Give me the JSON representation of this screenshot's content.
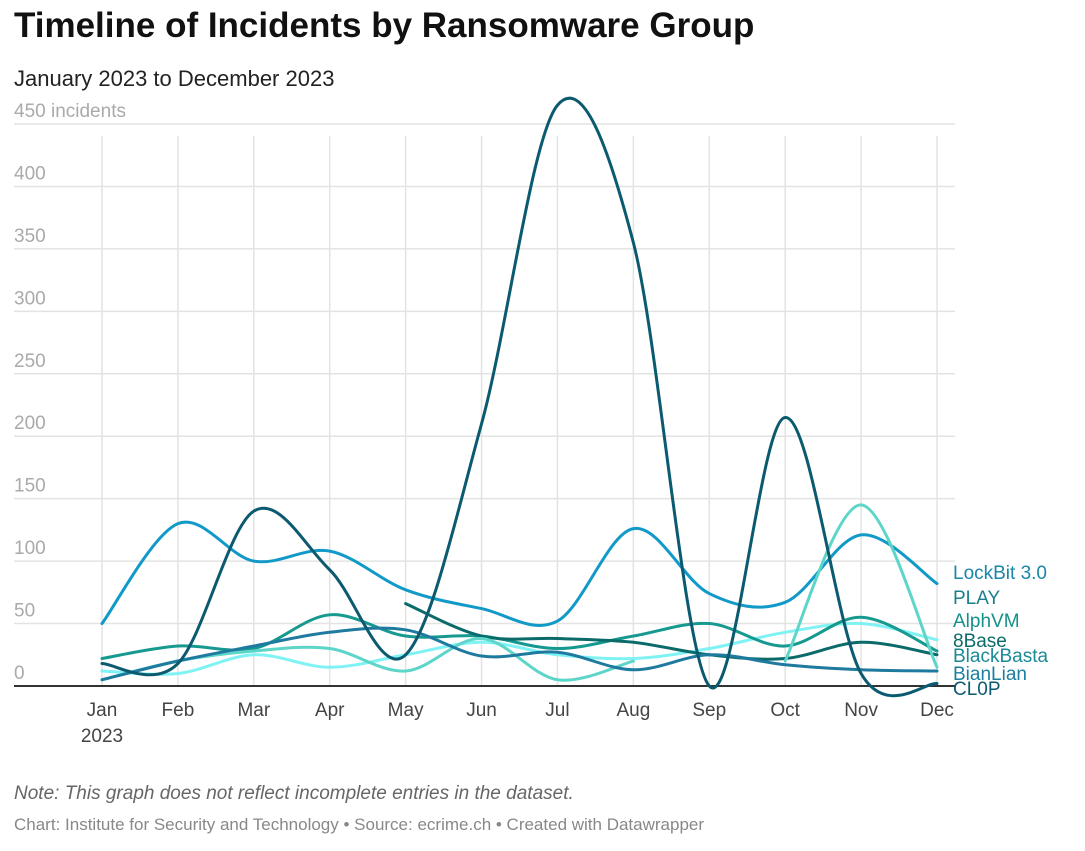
{
  "chart_data": {
    "type": "line",
    "title": "Timeline of Incidents by Ransomware Group",
    "subtitle": "January 2023 to December 2023",
    "ylabel_unit": "incidents",
    "ylim": [
      0,
      450
    ],
    "yticks": [
      0,
      50,
      100,
      150,
      200,
      250,
      300,
      350,
      400,
      450
    ],
    "categories": [
      "Jan",
      "Feb",
      "Mar",
      "Apr",
      "May",
      "Jun",
      "Jul",
      "Aug",
      "Sep",
      "Oct",
      "Nov",
      "Dec"
    ],
    "x_year_label": "2023",
    "grid": true,
    "legend": "direct labels at right",
    "series": [
      {
        "name": "LockBit 3.0",
        "color": "#1199c8",
        "label_color": "#1a86a8",
        "values": [
          50,
          130,
          100,
          108,
          77,
          62,
          52,
          126,
          74,
          67,
          121,
          82
        ]
      },
      {
        "name": "PLAY",
        "color": "#7ff2f4",
        "label_color": "#1a7f8c",
        "values": [
          12,
          10,
          25,
          15,
          25,
          35,
          25,
          22,
          30,
          43,
          50,
          37
        ]
      },
      {
        "name": "AlphVM",
        "color": "#16998f",
        "label_color": "#16908a",
        "values": [
          22,
          32,
          30,
          57,
          40,
          40,
          30,
          40,
          50,
          32,
          55,
          28
        ]
      },
      {
        "name": "8Base",
        "color": "#0b6a6a",
        "label_color": "#0b6a6a",
        "values": [
          null,
          null,
          null,
          null,
          66,
          40,
          38,
          35,
          25,
          22,
          35,
          25
        ]
      },
      {
        "name": "BlackBasta",
        "color": "#5dd5c9",
        "label_color": "#1a8a96",
        "values": [
          5,
          20,
          28,
          30,
          12,
          38,
          5,
          20,
          null,
          20,
          145,
          15
        ]
      },
      {
        "name": "BianLian",
        "color": "#1f7aa0",
        "label_color": "#1a7fa0",
        "values": [
          5,
          20,
          32,
          43,
          45,
          24,
          27,
          13,
          25,
          17,
          13,
          12
        ]
      },
      {
        "name": "CL0P",
        "color": "#0b5a70",
        "label_color": "#0b5a70",
        "values": [
          18,
          18,
          140,
          93,
          25,
          210,
          465,
          355,
          0,
          215,
          10,
          2
        ]
      }
    ]
  },
  "note": "Note: This graph does not reflect incomplete entries in the dataset.",
  "footer": "Chart: Institute for Security and Technology • Source: ecrime.ch • Created with Datawrapper"
}
